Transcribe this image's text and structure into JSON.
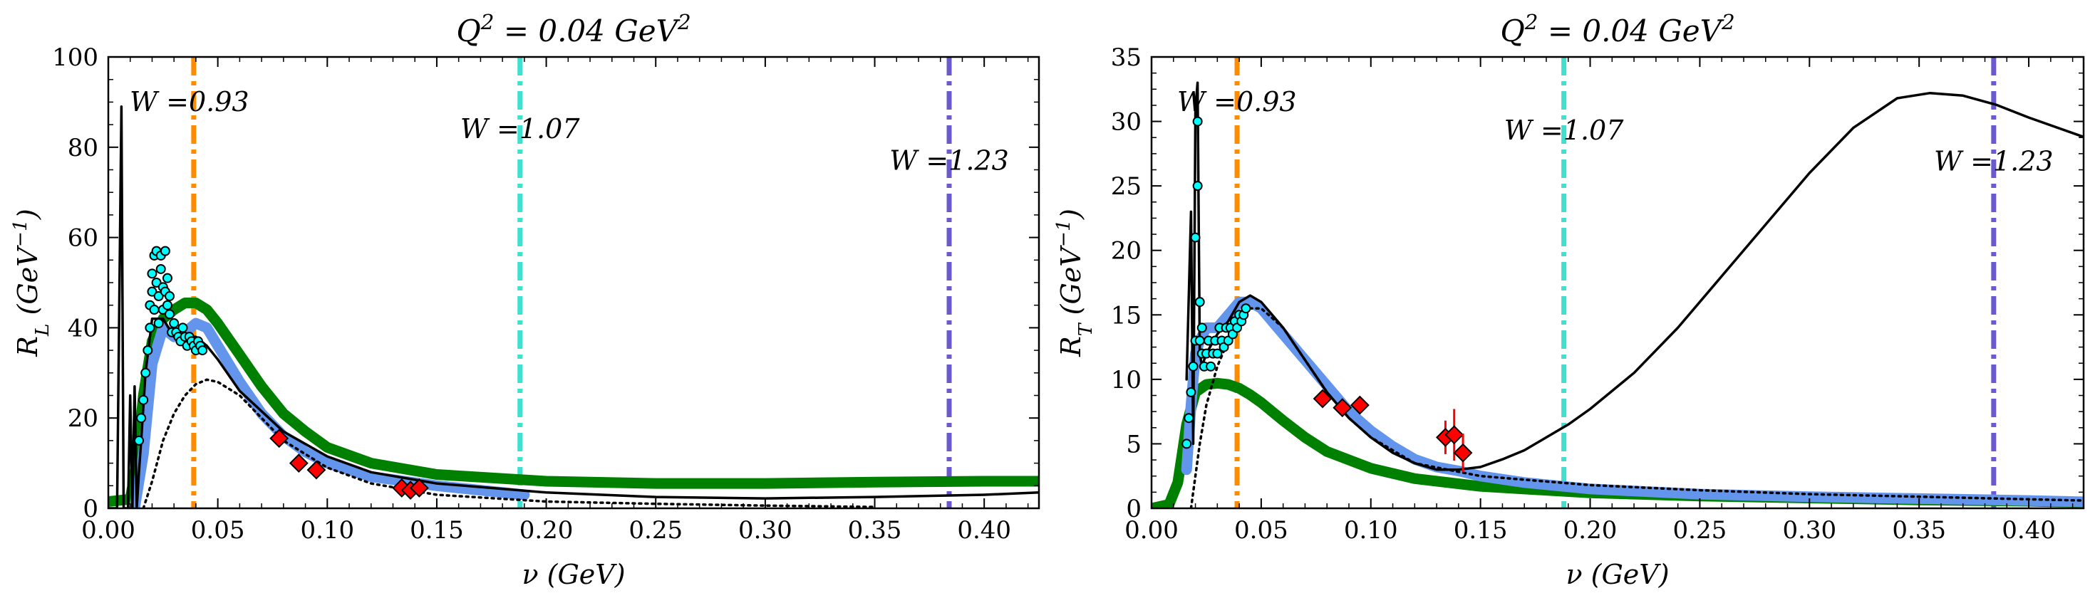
{
  "chart_data": [
    {
      "type": "line",
      "title": "Q² = 0.04 GeV²",
      "xlabel": "ν (GeV)",
      "ylabel": "R_L (GeV⁻¹)",
      "xlim": [
        0.0,
        0.425
      ],
      "ylim": [
        0,
        100
      ],
      "xticks": [
        "0.00",
        "0.05",
        "0.10",
        "0.15",
        "0.20",
        "0.25",
        "0.30",
        "0.35",
        "0.40"
      ],
      "yticks": [
        "0",
        "20",
        "40",
        "60",
        "80",
        "100"
      ],
      "grid": false,
      "vlines": [
        {
          "x": 0.039,
          "color": "#ff8c00",
          "label": "W =0.93",
          "label_y": 88
        },
        {
          "x": 0.188,
          "color": "#40e0d0",
          "label": "W =1.07",
          "label_y": 82
        },
        {
          "x": 0.384,
          "color": "#6a5acd",
          "label": "W =1.23",
          "label_y": 75
        }
      ],
      "series": [
        {
          "style": "thick-green",
          "color": "#008000",
          "x": [
            0.0,
            0.01,
            0.013,
            0.016,
            0.02,
            0.025,
            0.03,
            0.035,
            0.04,
            0.045,
            0.05,
            0.06,
            0.07,
            0.08,
            0.09,
            0.1,
            0.12,
            0.15,
            0.2,
            0.25,
            0.3,
            0.35,
            0.4,
            0.425
          ],
          "y": [
            1.5,
            2,
            10,
            25,
            37,
            42,
            44,
            45.5,
            45.5,
            44,
            41,
            34,
            27,
            21,
            17,
            13.5,
            10,
            7.5,
            6,
            5.5,
            5.5,
            5.8,
            6,
            6
          ]
        },
        {
          "style": "thick-blue",
          "color": "#6495ed",
          "x": [
            0.012,
            0.016,
            0.02,
            0.025,
            0.03,
            0.035,
            0.04,
            0.045,
            0.05,
            0.06,
            0.07,
            0.08,
            0.09,
            0.1,
            0.12,
            0.15,
            0.19
          ],
          "y": [
            0,
            12,
            32,
            40,
            38,
            39,
            41,
            40,
            36,
            28,
            21,
            16,
            12.5,
            10,
            7,
            5,
            3
          ]
        },
        {
          "style": "solid-black",
          "color": "#000000",
          "x": [
            0.0,
            0.004,
            0.006,
            0.007,
            0.009,
            0.01,
            0.011,
            0.012,
            0.013,
            0.014,
            0.015,
            0.017,
            0.02,
            0.025,
            0.03,
            0.035,
            0.04,
            0.045,
            0.05,
            0.06,
            0.08,
            0.1,
            0.12,
            0.15,
            0.2,
            0.25,
            0.3,
            0.35,
            0.4,
            0.425
          ],
          "y": [
            0,
            0,
            89,
            0,
            0,
            25,
            0,
            27,
            0,
            8,
            15,
            30,
            42,
            42,
            38,
            38,
            38,
            36,
            33,
            26,
            17,
            11.5,
            8,
            5.5,
            3.5,
            2.5,
            2.2,
            2.5,
            3,
            3.5
          ]
        },
        {
          "style": "dotted-black",
          "color": "#000000",
          "x": [
            0.016,
            0.02,
            0.025,
            0.03,
            0.035,
            0.04,
            0.045,
            0.05,
            0.06,
            0.07,
            0.08,
            0.1,
            0.12,
            0.15,
            0.2,
            0.25,
            0.3,
            0.35
          ],
          "y": [
            0,
            6,
            15,
            21,
            25,
            27.5,
            28.5,
            28,
            25,
            20,
            15,
            9,
            5.5,
            3,
            1.5,
            1,
            0.6,
            0.3
          ]
        },
        {
          "style": "cyan-points",
          "color": "#00ffff",
          "x": [
            0.014,
            0.015,
            0.016,
            0.017,
            0.018,
            0.019,
            0.019,
            0.02,
            0.02,
            0.021,
            0.021,
            0.022,
            0.022,
            0.023,
            0.023,
            0.024,
            0.024,
            0.025,
            0.025,
            0.026,
            0.026,
            0.027,
            0.027,
            0.028,
            0.028,
            0.029,
            0.03,
            0.031,
            0.032,
            0.033,
            0.034,
            0.035,
            0.036,
            0.037,
            0.038,
            0.039,
            0.04,
            0.041,
            0.042,
            0.043
          ],
          "y": [
            15,
            20,
            24,
            30,
            35,
            40,
            45,
            48,
            52,
            56,
            44,
            50,
            57,
            47,
            41,
            53,
            56,
            49,
            44,
            57,
            48,
            45,
            51,
            43,
            47,
            39,
            41,
            39,
            38,
            37,
            40,
            38,
            36,
            38,
            37,
            36,
            35,
            37,
            36,
            35
          ]
        },
        {
          "style": "red-diamonds",
          "color": "#ff0000",
          "x": [
            0.078,
            0.087,
            0.095,
            0.134,
            0.138,
            0.142
          ],
          "y": [
            15.5,
            10,
            8.5,
            4.5,
            4,
            4.5
          ],
          "err": [
            0.5,
            0.5,
            0.5,
            0.5,
            0.5,
            0.5
          ]
        }
      ]
    },
    {
      "type": "line",
      "title": "Q² = 0.04 GeV²",
      "xlabel": "ν (GeV)",
      "ylabel": "R_T (GeV⁻¹)",
      "xlim": [
        0.0,
        0.425
      ],
      "ylim": [
        0,
        35
      ],
      "xticks": [
        "0.00",
        "0.05",
        "0.10",
        "0.15",
        "0.20",
        "0.25",
        "0.30",
        "0.35",
        "0.40"
      ],
      "yticks": [
        "0",
        "5",
        "10",
        "15",
        "20",
        "25",
        "30",
        "35"
      ],
      "grid": false,
      "vlines": [
        {
          "x": 0.039,
          "color": "#ff8c00",
          "label": "W =0.93",
          "label_y": 30.8
        },
        {
          "x": 0.188,
          "color": "#40e0d0",
          "label": "W =1.07",
          "label_y": 28.6
        },
        {
          "x": 0.384,
          "color": "#6a5acd",
          "label": "W =1.23",
          "label_y": 26.2
        }
      ],
      "series": [
        {
          "style": "thick-green",
          "color": "#008000",
          "x": [
            0.0,
            0.008,
            0.012,
            0.016,
            0.02,
            0.025,
            0.03,
            0.035,
            0.04,
            0.045,
            0.05,
            0.06,
            0.07,
            0.08,
            0.1,
            0.12,
            0.15,
            0.2,
            0.25,
            0.3,
            0.35,
            0.4,
            0.425
          ],
          "y": [
            0,
            0.3,
            2,
            6.5,
            9,
            9.6,
            9.7,
            9.6,
            9.3,
            8.8,
            8.2,
            6.8,
            5.5,
            4.4,
            3.1,
            2.3,
            1.7,
            1.2,
            0.95,
            0.8,
            0.65,
            0.55,
            0.45
          ]
        },
        {
          "style": "thick-blue",
          "color": "#6495ed",
          "x": [
            0.016,
            0.018,
            0.02,
            0.022,
            0.025,
            0.03,
            0.035,
            0.04,
            0.045,
            0.05,
            0.06,
            0.07,
            0.08,
            0.09,
            0.1,
            0.11,
            0.12,
            0.13,
            0.14,
            0.15,
            0.17,
            0.2,
            0.25,
            0.3,
            0.35,
            0.4,
            0.425
          ],
          "y": [
            3,
            8,
            12,
            13,
            14,
            14,
            15,
            16,
            16,
            15.5,
            13.5,
            11.5,
            9.5,
            7.5,
            6,
            4.8,
            3.8,
            3.2,
            2.9,
            2.5,
            2,
            1.5,
            1.1,
            0.9,
            0.75,
            0.6,
            0.5
          ]
        },
        {
          "style": "solid-black",
          "color": "#000000",
          "x": [
            0.016,
            0.018,
            0.019,
            0.02,
            0.021,
            0.022,
            0.023,
            0.025,
            0.03,
            0.035,
            0.04,
            0.045,
            0.05,
            0.06,
            0.07,
            0.08,
            0.09,
            0.1,
            0.11,
            0.12,
            0.13,
            0.14,
            0.15,
            0.16,
            0.17,
            0.18,
            0.19,
            0.2,
            0.22,
            0.24,
            0.26,
            0.28,
            0.3,
            0.32,
            0.34,
            0.355,
            0.37,
            0.385,
            0.4,
            0.425
          ],
          "y": [
            10,
            23,
            5,
            31,
            33,
            12,
            11,
            12,
            13.5,
            14.5,
            16,
            16.5,
            16,
            14,
            11.5,
            9,
            7,
            5.5,
            4.3,
            3.5,
            3,
            3,
            3.2,
            3.8,
            4.5,
            5.5,
            6.5,
            7.7,
            10.5,
            14,
            18,
            22,
            26,
            29.5,
            31.8,
            32.2,
            32,
            31.3,
            30.3,
            28.8
          ]
        },
        {
          "style": "dotted-black",
          "color": "#000000",
          "x": [
            0.018,
            0.022,
            0.025,
            0.03,
            0.035,
            0.04,
            0.045,
            0.05,
            0.06,
            0.07,
            0.08,
            0.09,
            0.1,
            0.12,
            0.15,
            0.2,
            0.25,
            0.3,
            0.35,
            0.4,
            0.425
          ],
          "y": [
            0,
            5,
            8,
            11,
            13,
            14.5,
            15.5,
            15.5,
            14,
            11.5,
            9,
            7,
            5.5,
            3.5,
            2.5,
            1.8,
            1.4,
            1.1,
            0.9,
            0.7,
            0.6
          ]
        },
        {
          "style": "cyan-points",
          "color": "#00ffff",
          "x": [
            0.016,
            0.017,
            0.018,
            0.019,
            0.02,
            0.02,
            0.021,
            0.021,
            0.022,
            0.022,
            0.023,
            0.023,
            0.024,
            0.025,
            0.026,
            0.027,
            0.028,
            0.029,
            0.03,
            0.031,
            0.032,
            0.033,
            0.034,
            0.035,
            0.036,
            0.037,
            0.038,
            0.039,
            0.04,
            0.041,
            0.042,
            0.043
          ],
          "y": [
            5,
            7,
            9,
            11,
            13,
            21,
            25,
            30,
            16,
            13,
            12,
            14,
            11,
            12,
            13,
            11,
            12,
            13,
            12,
            14,
            13,
            12.5,
            14,
            13,
            14,
            13.5,
            14.5,
            14,
            15,
            14.5,
            15,
            15.5
          ]
        },
        {
          "style": "red-diamonds",
          "color": "#ff0000",
          "x": [
            0.078,
            0.087,
            0.095,
            0.134,
            0.138,
            0.142
          ],
          "y": [
            8.5,
            7.8,
            8,
            5.5,
            5.7,
            4.3
          ],
          "err": [
            0.4,
            0.4,
            0.4,
            1.3,
            2.0,
            1.5
          ]
        }
      ]
    }
  ]
}
